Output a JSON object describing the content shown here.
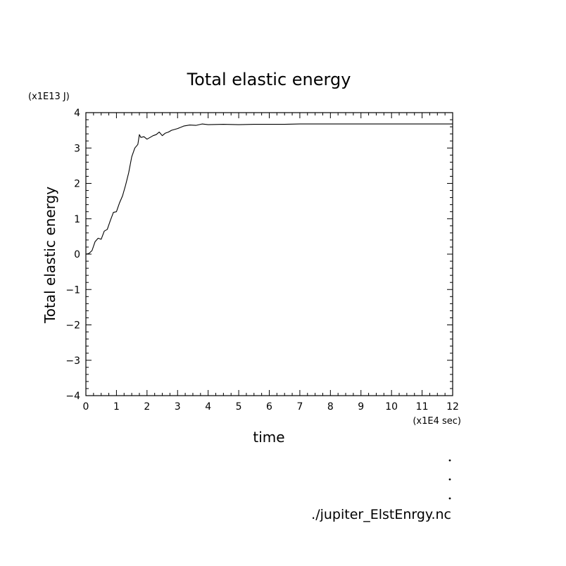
{
  "chart_data": {
    "type": "line",
    "title": "Total elastic energy",
    "xlabel": "time",
    "ylabel": "Total elastic energy",
    "x_unit_note": "(x1E4 sec)",
    "y_unit_note": "(x1E13 J)",
    "xlim": [
      0,
      12
    ],
    "ylim": [
      -4,
      4
    ],
    "xticks": [
      "0",
      "1",
      "2",
      "3",
      "4",
      "5",
      "6",
      "7",
      "8",
      "9",
      "10",
      "11",
      "12"
    ],
    "yticks": [
      "-4",
      "-3",
      "-2",
      "-1",
      "0",
      "1",
      "2",
      "3",
      "4"
    ],
    "grid": false,
    "series": [
      {
        "x": [
          0.0,
          0.1,
          0.2,
          0.3,
          0.4,
          0.5,
          0.6,
          0.7,
          0.8,
          0.9,
          1.0,
          1.1,
          1.2,
          1.3,
          1.4,
          1.5,
          1.6,
          1.7,
          1.75,
          1.8,
          1.9,
          2.0,
          2.1,
          2.2,
          2.3,
          2.4,
          2.5,
          2.6,
          2.7,
          2.8,
          3.0,
          3.2,
          3.4,
          3.6,
          3.8,
          4.0,
          4.5,
          5.0,
          5.5,
          6.0,
          6.5,
          7.0,
          8.0,
          9.0,
          10.0,
          11.0,
          12.0
        ],
        "y": [
          0.0,
          0.02,
          0.1,
          0.35,
          0.45,
          0.42,
          0.65,
          0.7,
          0.95,
          1.18,
          1.2,
          1.45,
          1.65,
          1.95,
          2.3,
          2.75,
          3.0,
          3.1,
          3.38,
          3.3,
          3.32,
          3.25,
          3.3,
          3.35,
          3.38,
          3.45,
          3.35,
          3.42,
          3.45,
          3.5,
          3.55,
          3.62,
          3.65,
          3.64,
          3.68,
          3.66,
          3.67,
          3.66,
          3.67,
          3.67,
          3.67,
          3.68,
          3.68,
          3.68,
          3.68,
          3.68,
          3.68
        ]
      }
    ]
  },
  "footer": {
    "filename": "./jupiter_ElstEnrgy.nc"
  }
}
